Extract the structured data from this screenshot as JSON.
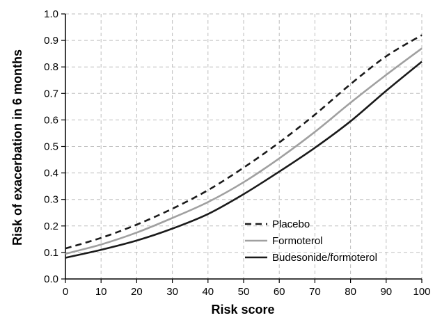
{
  "chart_data": {
    "type": "line",
    "title": "",
    "xlabel": "Risk score",
    "ylabel": "Risk of exacerbation in 6 months",
    "xlim": [
      0,
      100
    ],
    "ylim": [
      0,
      1.0
    ],
    "x_ticks": [
      "0",
      "10",
      "20",
      "30",
      "40",
      "50",
      "60",
      "70",
      "80",
      "90",
      "100"
    ],
    "y_ticks": [
      "0.0",
      "0.1",
      "0.2",
      "0.3",
      "0.4",
      "0.5",
      "0.6",
      "0.7",
      "0.8",
      "0.9",
      "1.0"
    ],
    "grid": true,
    "legend_position": "bottom-right",
    "x": [
      0,
      10,
      20,
      30,
      40,
      50,
      60,
      70,
      80,
      90,
      100
    ],
    "series": [
      {
        "name": "Placebo",
        "style": "dashed",
        "color": "#1a1a1a",
        "values": [
          0.115,
          0.155,
          0.205,
          0.265,
          0.335,
          0.42,
          0.515,
          0.62,
          0.735,
          0.84,
          0.92
        ]
      },
      {
        "name": "Formoterol",
        "style": "solid",
        "color": "#a0a0a0",
        "values": [
          0.095,
          0.13,
          0.175,
          0.23,
          0.29,
          0.365,
          0.455,
          0.555,
          0.665,
          0.77,
          0.87
        ]
      },
      {
        "name": "Budesonide/formoterol",
        "style": "solid",
        "color": "#1a1a1a",
        "values": [
          0.08,
          0.11,
          0.145,
          0.19,
          0.245,
          0.32,
          0.405,
          0.495,
          0.595,
          0.71,
          0.82
        ]
      }
    ]
  }
}
